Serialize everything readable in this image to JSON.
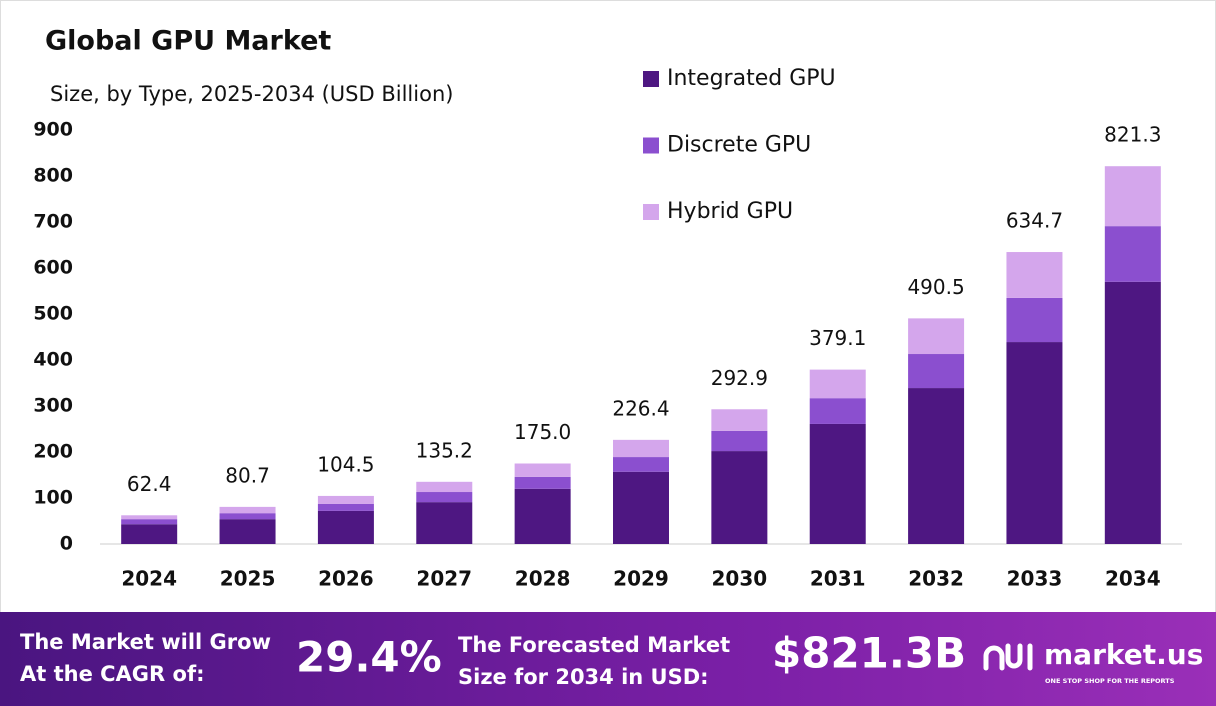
{
  "chart_data": {
    "type": "stacked_bar",
    "title": "Global GPU Market",
    "subtitle": "Size, by Type, 2025-2034 (USD Billion)",
    "categories": [
      "2024",
      "2025",
      "2026",
      "2027",
      "2028",
      "2029",
      "2030",
      "2031",
      "2032",
      "2033",
      "2034"
    ],
    "series": [
      {
        "name": "Integrated GPU",
        "color": "#4e1782",
        "values": [
          43,
          54,
          72,
          91,
          120,
          157,
          202,
          261,
          339,
          439,
          570
        ]
      },
      {
        "name": "Discrete GPU",
        "color": "#8b4fcf",
        "values": [
          11,
          13,
          15,
          22,
          26,
          32,
          44,
          56,
          74,
          96,
          121
        ]
      },
      {
        "name": "Hybrid GPU",
        "color": "#d4a6ec",
        "values": [
          8.4,
          13.7,
          17.5,
          22.2,
          29,
          37.4,
          46.9,
          62.1,
          77.5,
          99.7,
          130.3
        ]
      }
    ],
    "totals": [
      62.4,
      80.7,
      104.5,
      135.2,
      175,
      226.4,
      292.9,
      379.1,
      490.5,
      634.7,
      821.3
    ],
    "total_labels": [
      "62.4",
      "80.7",
      "104.5",
      "135.2",
      "175.0",
      "226.4",
      "292.9",
      "379.1",
      "490.5",
      "634.7",
      "821.3"
    ],
    "ylim": [
      0,
      900
    ],
    "yticks": [
      0,
      100,
      200,
      300,
      400,
      500,
      600,
      700,
      800,
      900
    ],
    "grid": false,
    "legend": "top-right"
  },
  "footer": {
    "cagr_text_1": "The Market will Grow",
    "cagr_text_2": "At the CAGR of:",
    "cagr": "29.4%",
    "forecast_text_1": "The Forecasted Market",
    "forecast_text_2": "Size for 2034 in USD:",
    "forecast": "$821.3B",
    "brand": "market.us",
    "tagline": "ONE STOP SHOP FOR THE REPORTS"
  }
}
